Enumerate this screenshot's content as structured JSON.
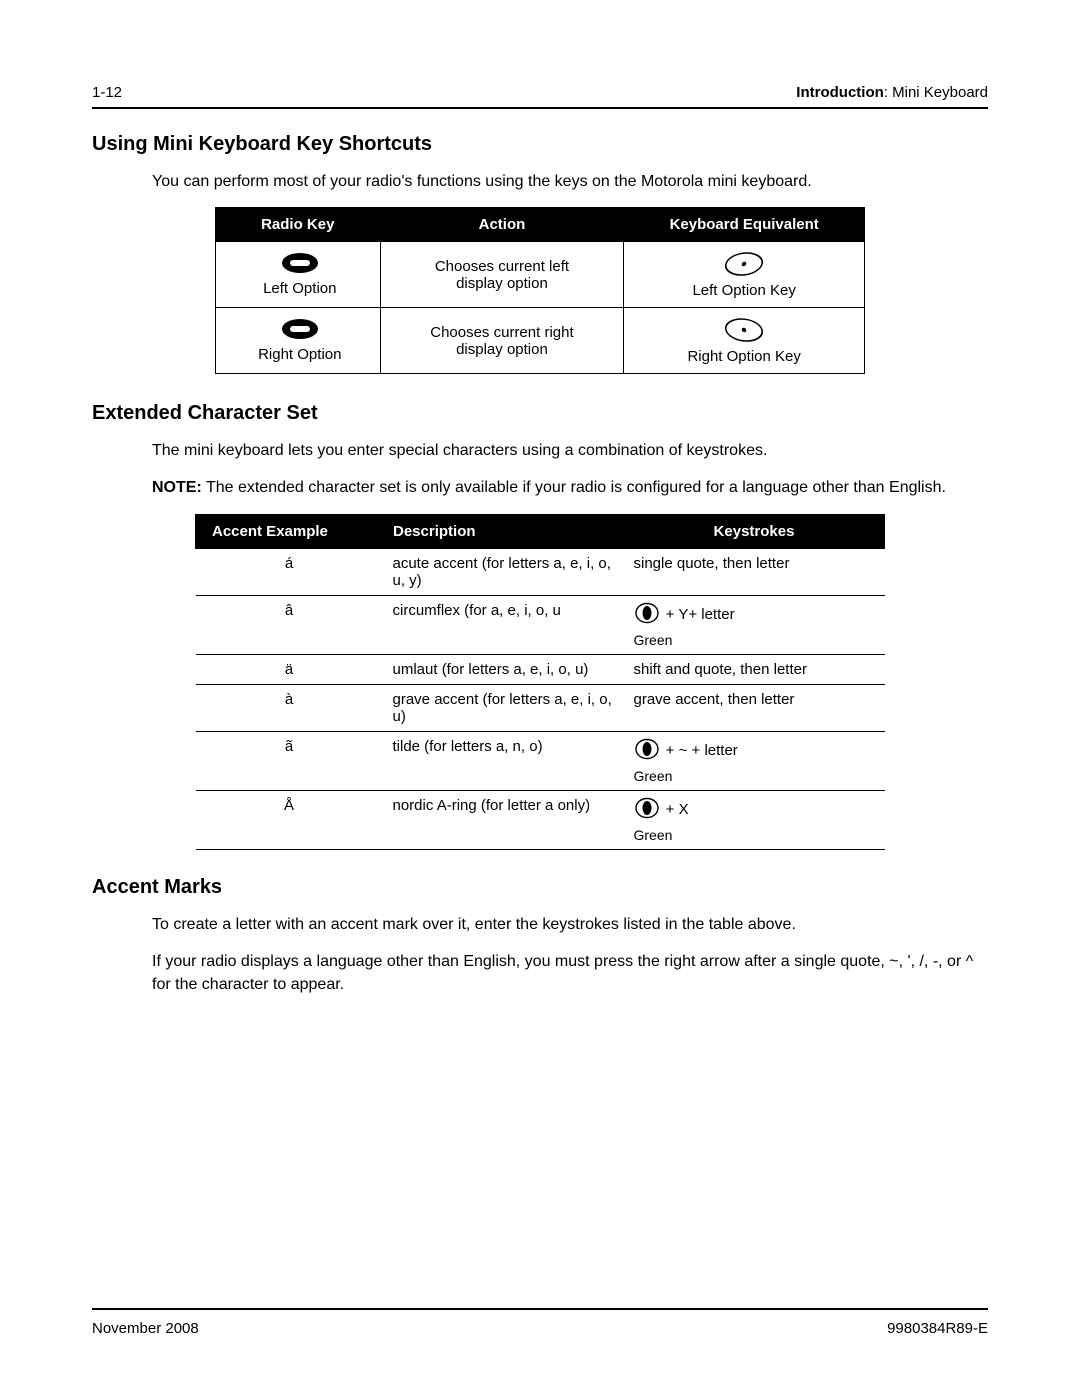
{
  "header": {
    "page_num": "1-12",
    "chapter_bold": "Introduction",
    "chapter_rest": ": Mini Keyboard"
  },
  "section1": {
    "title": "Using Mini Keyboard Key Shortcuts",
    "intro": "You can perform most of your radio's functions using the keys on the Motorola mini keyboard."
  },
  "shortcuts_table": {
    "headers": [
      "Radio Key",
      "Action",
      "Keyboard Equivalent"
    ],
    "rows": [
      {
        "radio_label": "Left Option",
        "action_line1": "Chooses current left",
        "action_line2": "display option",
        "equiv_label": "Left Option Key",
        "equiv_skew": "left"
      },
      {
        "radio_label": "Right Option",
        "action_line1": "Chooses current right",
        "action_line2": "display option",
        "equiv_label": "Right Option Key",
        "equiv_skew": "right"
      }
    ]
  },
  "section2": {
    "title": "Extended Character Set",
    "intro": "The mini keyboard lets you enter special characters using a combination of keystrokes.",
    "note_label": "NOTE:",
    "note_text": "The extended character set is only available if your radio is configured for a language other than English."
  },
  "ext_table": {
    "headers": [
      "Accent Example",
      "Description",
      "Keystrokes"
    ],
    "rows": [
      {
        "accent": "á",
        "desc": "acute accent (for letters a, e, i, o, u, y)",
        "key_text": "single quote, then letter",
        "has_icon": false,
        "green": false
      },
      {
        "accent": "â",
        "desc": "circumflex (for a, e, i, o, u",
        "key_text": " + Y+ letter",
        "has_icon": true,
        "green": true
      },
      {
        "accent": "ä",
        "desc": "umlaut (for letters a, e, i, o, u)",
        "key_text": "shift and quote, then letter",
        "has_icon": false,
        "green": false
      },
      {
        "accent": "à",
        "desc": "grave accent (for letters a, e, i, o, u)",
        "key_text": "grave accent, then letter",
        "has_icon": false,
        "green": false
      },
      {
        "accent": "ã",
        "desc": "tilde (for letters a, n, o)",
        "key_text": " + ~ + letter",
        "has_icon": true,
        "green": true
      },
      {
        "accent": "Å",
        "desc": "nordic A-ring (for letter a only)",
        "key_text": " + X",
        "has_icon": true,
        "green": true
      }
    ],
    "green_label": "Green"
  },
  "section3": {
    "title": "Accent Marks",
    "p1": "To create a letter with an accent mark over it, enter the keystrokes listed in the table above.",
    "p2": "If your radio displays a language other than English, you must press the right arrow after a single quote, ~, ', /, -, or ^ for the character to appear."
  },
  "footer": {
    "date": "November 2008",
    "doc_id": "9980384R89-E"
  },
  "colors": {
    "text": "#000000",
    "bg": "#ffffff",
    "table_header_bg": "#000000",
    "table_header_fg": "#ffffff"
  }
}
